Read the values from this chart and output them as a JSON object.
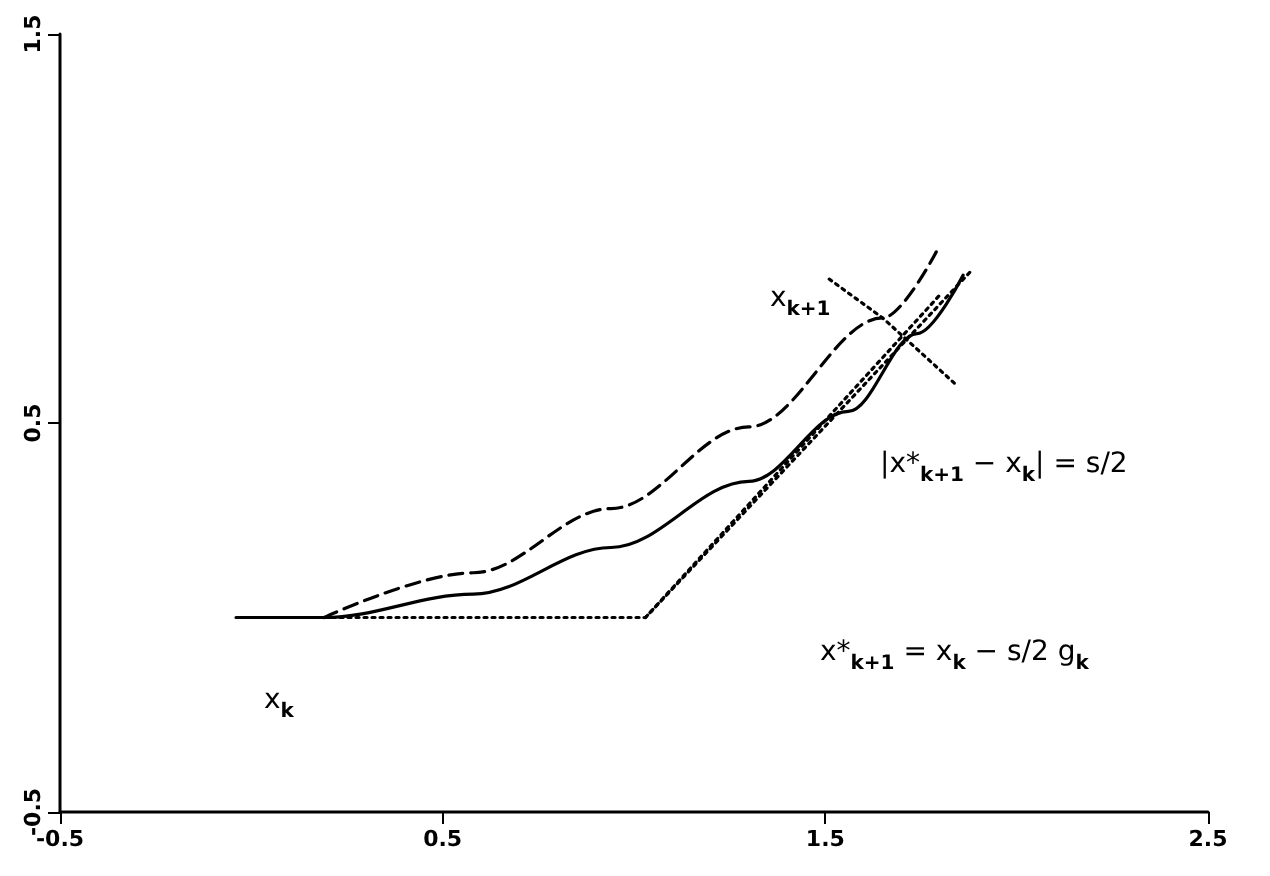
{
  "chart_data": {
    "type": "line",
    "xlim": [
      -0.5,
      2.5
    ],
    "xticks": [
      -0.5,
      0.5,
      1.5,
      2.5
    ],
    "ylim": [
      -0.5,
      1.5
    ],
    "yticks": [
      -0.5,
      0.5,
      1.5
    ],
    "grid": false,
    "marker": "none",
    "series": [
      {
        "color": "#000000",
        "line_style": "solid",
        "x": [
          -0.04,
          0.19,
          0.58,
          0.94,
          1.3,
          1.56,
          1.74,
          1.86
        ],
        "values": [
          0,
          0,
          0.06,
          0.18,
          0.35,
          0.53,
          0.73,
          0.88
        ]
      },
      {
        "color": "#000000",
        "line_style": "dashed",
        "x": [
          0.19,
          0.58,
          0.94,
          1.3,
          1.65,
          1.79
        ],
        "values": [
          0,
          0.115,
          0.28,
          0.49,
          0.77,
          0.94
        ]
      },
      {
        "color": "#000000",
        "line_style": "dotted",
        "x": [
          0.19,
          1.03,
          1.88
        ],
        "values": [
          0,
          0,
          0.89
        ]
      },
      {
        "color": "#000000",
        "line_style": "dotted",
        "x": [
          1.03,
          1.8
        ],
        "values": [
          0,
          0.83
        ]
      },
      {
        "color": "#000000",
        "line_style": "dotted",
        "x": [
          1.51,
          1.65,
          1.84
        ],
        "values": [
          0.87,
          0.77,
          0.6
        ]
      }
    ],
    "annotations": [
      "x$_{k+1}$",
      "|x*$_{k+1}$ − x$_{k}$| = s/2",
      "x$_{k}$",
      "x*$_{k+1}$ = x$_{k}$ − s/2 g$_{k}$"
    ]
  }
}
